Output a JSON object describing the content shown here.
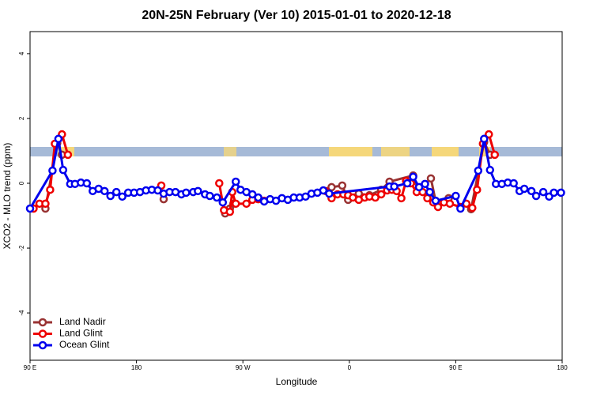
{
  "chart_data": {
    "type": "line",
    "title": "20N-25N February (Ver 10)   2015-01-01 to 2020-12-18",
    "x_label": "Longitude",
    "y_label": "XCO2 - MLO trend (ppm)",
    "xlim": [
      90,
      540
    ],
    "ylim": [
      -5.46,
      4.68
    ],
    "xticks": [
      {
        "value": 90,
        "label": "90 E"
      },
      180,
      {
        "value": 270,
        "label": "90 W"
      },
      {
        "value": 360,
        "label": "0"
      },
      {
        "value": 450,
        "label": "90 E"
      },
      {
        "value": 540,
        "label": "180"
      }
    ],
    "yticks": [
      -4,
      -2,
      0,
      2,
      4
    ],
    "legend": "bottom-left",
    "series": [
      {
        "name": "Land Nadir",
        "color": "#993333",
        "x": [
          103,
          113,
          117,
          160,
          203,
          230,
          255,
          259,
          262,
          300,
          345,
          354,
          359,
          368,
          377,
          387,
          394,
          414,
          418,
          429,
          433,
          444,
          455,
          463,
          474,
          479
        ],
        "values": [
          -0.78,
          1.24,
          0.88,
          null,
          -0.49,
          null,
          -0.93,
          -0.78,
          -0.63,
          null,
          -0.12,
          -0.07,
          -0.51,
          -0.32,
          -0.37,
          -0.2,
          0.05,
          0.24,
          -0.24,
          0.15,
          -0.56,
          -0.46,
          null,
          -0.8,
          1.27,
          0.88
        ]
      },
      {
        "name": "Land Glint",
        "color": "#ee0000",
        "x": [
          93,
          98,
          103,
          107,
          111,
          117,
          122,
          160,
          201,
          225,
          250,
          254,
          259,
          261,
          264,
          273,
          278,
          283,
          288,
          310,
          340,
          345,
          350,
          355,
          359,
          363,
          368,
          373,
          377,
          382,
          387,
          392,
          396,
          400,
          404,
          408,
          412,
          417,
          422,
          426,
          431,
          435,
          440,
          445,
          454,
          459,
          464,
          468,
          473,
          478,
          483
        ],
        "values": [
          -0.78,
          -0.63,
          -0.63,
          -0.2,
          1.22,
          1.51,
          0.88,
          null,
          -0.07,
          null,
          0,
          -0.83,
          -0.88,
          -0.27,
          -0.63,
          -0.63,
          -0.51,
          -0.49,
          -0.54,
          null,
          -0.24,
          -0.46,
          -0.34,
          -0.34,
          -0.37,
          -0.44,
          -0.51,
          -0.44,
          -0.41,
          -0.44,
          -0.34,
          -0.22,
          -0.2,
          -0.24,
          -0.46,
          0.07,
          0,
          -0.27,
          -0.27,
          -0.46,
          -0.59,
          -0.73,
          -0.59,
          -0.63,
          -0.73,
          -0.63,
          -0.76,
          -0.2,
          1.22,
          1.51,
          0.88
        ]
      },
      {
        "name": "Ocean Glint",
        "color": "#0000ee",
        "x": [
          90,
          109,
          114,
          118,
          124,
          128,
          133,
          138,
          143,
          148,
          153,
          158,
          163,
          168,
          173,
          178,
          183,
          188,
          193,
          198,
          203,
          208,
          213,
          218,
          222,
          228,
          232,
          238,
          242,
          248,
          253,
          264,
          268,
          273,
          278,
          283,
          288,
          293,
          298,
          303,
          308,
          313,
          318,
          323,
          328,
          333,
          338,
          343,
          394,
          398,
          409,
          414,
          419,
          424,
          428,
          433,
          450,
          454,
          469,
          474,
          479,
          484,
          489,
          494,
          499,
          504,
          508,
          514,
          518,
          524,
          529,
          533,
          539
        ],
        "values": [
          -0.78,
          0.39,
          1.37,
          0.41,
          -0.02,
          -0.02,
          0.02,
          0,
          -0.24,
          -0.17,
          -0.24,
          -0.39,
          -0.27,
          -0.41,
          -0.29,
          -0.29,
          -0.27,
          -0.22,
          -0.2,
          -0.22,
          -0.32,
          -0.27,
          -0.27,
          -0.34,
          -0.29,
          -0.27,
          -0.24,
          -0.34,
          -0.39,
          -0.44,
          -0.59,
          0.05,
          -0.2,
          -0.27,
          -0.34,
          -0.44,
          -0.56,
          -0.49,
          -0.54,
          -0.46,
          -0.51,
          -0.44,
          -0.44,
          -0.41,
          -0.32,
          -0.29,
          -0.22,
          -0.32,
          -0.1,
          -0.1,
          0,
          0.2,
          -0.12,
          -0.02,
          -0.27,
          -0.54,
          -0.39,
          -0.78,
          0.39,
          1.37,
          0.41,
          -0.02,
          -0.02,
          0.02,
          0,
          -0.24,
          -0.17,
          -0.24,
          -0.39,
          -0.27,
          -0.41,
          -0.29,
          -0.29
        ]
      }
    ]
  }
}
